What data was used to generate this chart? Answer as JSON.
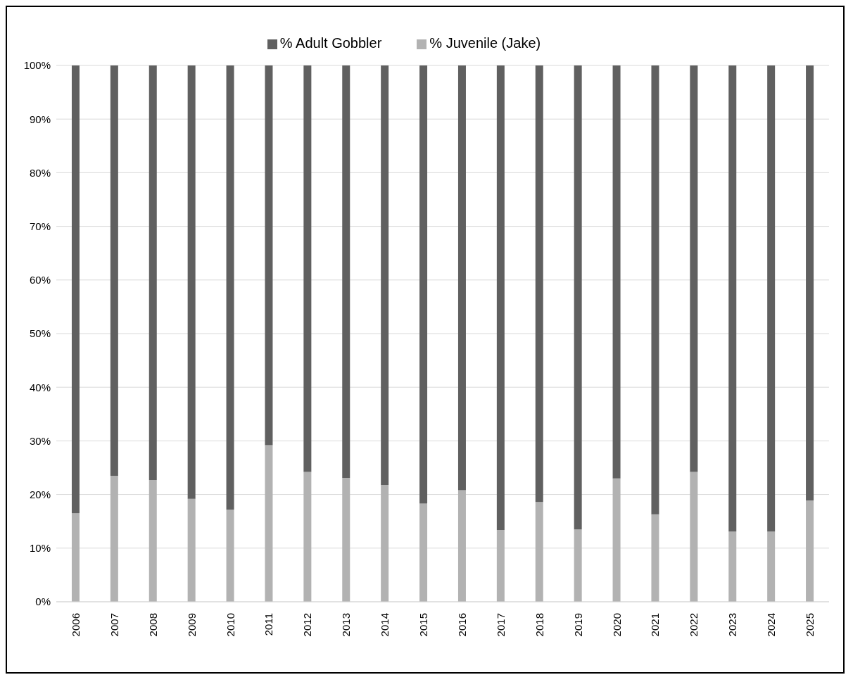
{
  "chart_data": {
    "type": "bar",
    "stacked": true,
    "categories": [
      "2006",
      "2007",
      "2008",
      "2009",
      "2010",
      "2011",
      "2012",
      "2013",
      "2014",
      "2015",
      "2016",
      "2017",
      "2018",
      "2019",
      "2020",
      "2021",
      "2022",
      "2023",
      "2024",
      "2025"
    ],
    "series": [
      {
        "name": "% Juvenile (Jake)",
        "color": "#b2b2b2",
        "values": [
          16.5,
          23.5,
          22.7,
          19.2,
          17.2,
          29.2,
          24.2,
          23.1,
          21.8,
          18.3,
          20.8,
          13.4,
          18.6,
          13.5,
          23.0,
          16.3,
          24.2,
          13.1,
          13.1,
          18.9
        ]
      },
      {
        "name": "% Adult Gobbler",
        "color": "#606060",
        "values": [
          83.5,
          76.5,
          77.3,
          80.8,
          82.8,
          70.8,
          75.8,
          76.9,
          78.2,
          81.7,
          79.2,
          86.6,
          81.4,
          86.5,
          77.0,
          83.7,
          75.8,
          86.9,
          86.9,
          81.1
        ]
      }
    ],
    "ylim": [
      0,
      100
    ],
    "yticks": [
      {
        "value": 0,
        "label": "0%"
      },
      {
        "value": 10,
        "label": "10%"
      },
      {
        "value": 20,
        "label": "20%"
      },
      {
        "value": 30,
        "label": "30%"
      },
      {
        "value": 40,
        "label": "40%"
      },
      {
        "value": 50,
        "label": "50%"
      },
      {
        "value": 60,
        "label": "60%"
      },
      {
        "value": 70,
        "label": "70%"
      },
      {
        "value": 80,
        "label": "80%"
      },
      {
        "value": 90,
        "label": "90%"
      },
      {
        "value": 100,
        "label": "100%"
      }
    ],
    "grid": "y",
    "legend": "top"
  }
}
